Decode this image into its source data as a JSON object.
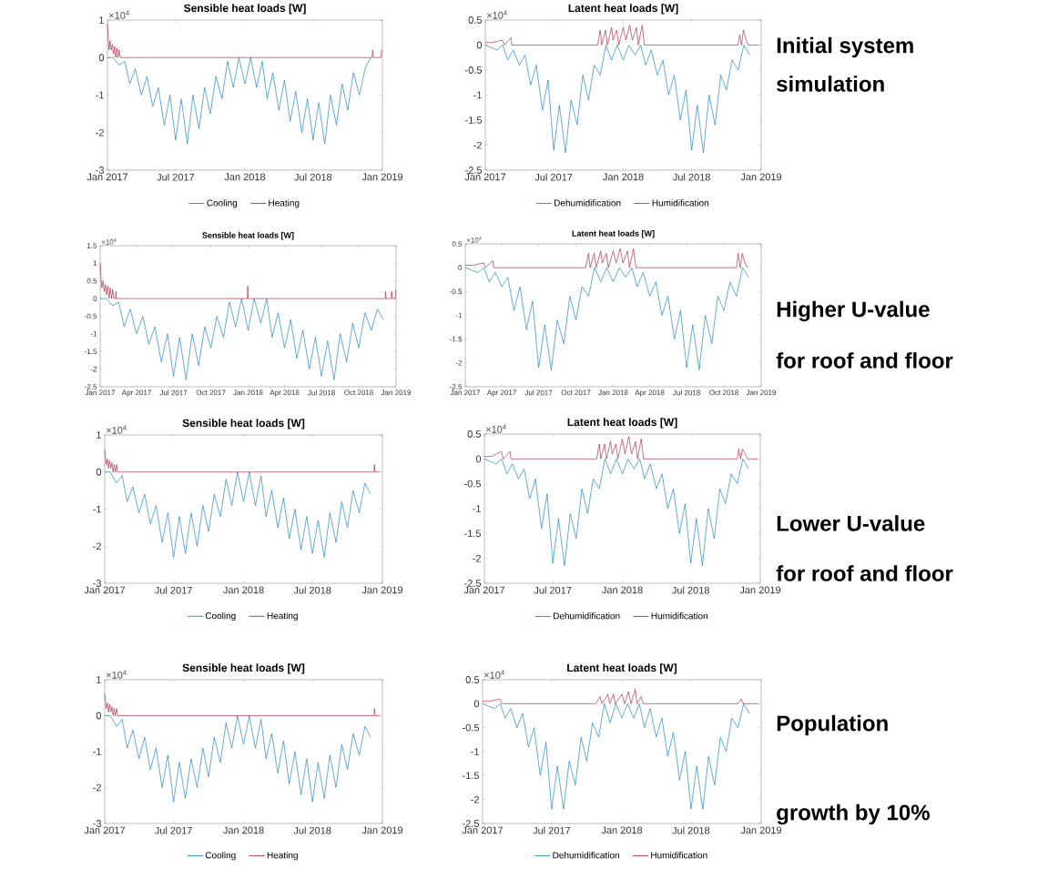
{
  "chart_data": [
    {
      "type": "line",
      "title": "Sensible heat loads [W]",
      "annotations": [
        "×10$^{4}$"
      ],
      "legend": "bottom",
      "x": [
        "2017-01-01",
        "2017-01-16",
        "2017-02-01",
        "2017-02-16",
        "2017-03-01",
        "2017-03-16",
        "2017-04-01",
        "2017-04-16",
        "2017-05-01",
        "2017-05-16",
        "2017-06-01",
        "2017-06-16",
        "2017-07-01",
        "2017-07-16",
        "2017-08-01",
        "2017-08-16",
        "2017-09-01",
        "2017-09-16",
        "2017-10-01",
        "2017-10-16",
        "2017-11-01",
        "2017-11-16",
        "2017-12-01",
        "2017-12-16",
        "2018-01-01",
        "2018-01-16",
        "2018-02-01",
        "2018-02-16",
        "2018-03-01",
        "2018-03-16",
        "2018-04-01",
        "2018-04-16",
        "2018-05-01",
        "2018-05-16",
        "2018-06-01",
        "2018-06-16",
        "2018-07-01",
        "2018-07-16",
        "2018-08-01",
        "2018-08-16",
        "2018-09-01",
        "2018-09-16",
        "2018-10-01",
        "2018-10-16",
        "2018-11-01",
        "2018-11-16",
        "2018-12-01"
      ],
      "xlim": [
        "2017-01-01",
        "2019-01-01"
      ],
      "xticks": [
        {
          "value": "2017-01-01",
          "label": "Jan 2017"
        },
        {
          "value": "2017-07-01",
          "label": "Jul 2017"
        },
        {
          "value": "2018-01-01",
          "label": "Jan 2018"
        },
        {
          "value": "2018-07-01",
          "label": "Jul 2018"
        },
        {
          "value": "2019-01-01",
          "label": "Jan 2019"
        }
      ],
      "ylim": [
        -3,
        1
      ],
      "yticks": [
        -3,
        -2,
        -1,
        0,
        1
      ],
      "series": [
        {
          "name": "Cooling",
          "color": "#0072bd",
          "values": [
            0,
            0,
            -0.2,
            -0.1,
            -0.7,
            -0.3,
            -1.0,
            -0.5,
            -1.3,
            -0.8,
            -1.8,
            -1.0,
            -2.2,
            -1.1,
            -2.3,
            -1.0,
            -1.9,
            -0.8,
            -1.5,
            -0.5,
            -1.1,
            -0.1,
            -0.8,
            0,
            -0.7,
            0,
            -0.8,
            -0.1,
            -1.1,
            -0.4,
            -1.4,
            -0.6,
            -1.7,
            -0.9,
            -2.0,
            -1.1,
            -2.2,
            -1.2,
            -2.3,
            -1.0,
            -1.8,
            -0.7,
            -1.4,
            -0.4,
            -1.0,
            -0.3,
            0
          ]
        },
        {
          "name": "Heating",
          "color": "#a2142f",
          "x": [
            "2017-01-01",
            "2017-01-03",
            "2017-01-05",
            "2017-01-08",
            "2017-01-11",
            "2017-01-14",
            "2017-01-17",
            "2017-01-20",
            "2017-01-23",
            "2017-01-26",
            "2017-01-29",
            "2017-02-01",
            "2017-02-04",
            "2018-12-05",
            "2018-12-06",
            "2018-12-08",
            "2018-12-28",
            "2018-12-30",
            "2018-12-31"
          ],
          "values": [
            0.9,
            0.5,
            0.2,
            0.45,
            0.2,
            0.35,
            0.1,
            0.3,
            0,
            0.25,
            0,
            0.2,
            0,
            0,
            0.2,
            0,
            0,
            0.2,
            0.2
          ]
        }
      ]
    },
    {
      "type": "line",
      "title": "Latent heat loads [W]",
      "annotations": [
        "×10$^{4}$",
        "Initial system",
        "simulation"
      ],
      "legend": "bottom",
      "x": [
        "2017-01-01",
        "2017-01-16",
        "2017-02-01",
        "2017-02-16",
        "2017-03-01",
        "2017-03-16",
        "2017-04-01",
        "2017-04-16",
        "2017-05-01",
        "2017-05-16",
        "2017-06-01",
        "2017-06-16",
        "2017-07-01",
        "2017-07-16",
        "2017-08-01",
        "2017-08-16",
        "2017-09-01",
        "2017-09-16",
        "2017-10-01",
        "2017-10-16",
        "2017-11-01",
        "2017-11-16",
        "2017-12-01",
        "2017-12-16",
        "2018-01-01",
        "2018-01-16",
        "2018-02-01",
        "2018-02-16",
        "2018-03-01",
        "2018-03-16",
        "2018-04-01",
        "2018-04-16",
        "2018-05-01",
        "2018-05-16",
        "2018-06-01",
        "2018-06-16",
        "2018-07-01",
        "2018-07-16",
        "2018-08-01",
        "2018-08-16",
        "2018-09-01",
        "2018-09-16",
        "2018-10-01",
        "2018-10-16",
        "2018-11-01",
        "2018-11-16",
        "2018-12-01"
      ],
      "xlim": [
        "2017-01-01",
        "2019-01-01"
      ],
      "xticks": [
        {
          "value": "2017-01-01",
          "label": "Jan 2017"
        },
        {
          "value": "2017-07-01",
          "label": "Jul 2017"
        },
        {
          "value": "2018-01-01",
          "label": "Jan 2018"
        },
        {
          "value": "2018-07-01",
          "label": "Jul 2018"
        },
        {
          "value": "2019-01-01",
          "label": "Jan 2019"
        }
      ],
      "ylim": [
        -2.5,
        0.5
      ],
      "yticks": [
        -2.5,
        -2,
        -1.5,
        -1,
        -0.5,
        0,
        0.5
      ],
      "series": [
        {
          "name": "Dehumidification",
          "color": "#0072bd",
          "values": [
            0,
            -0.05,
            -0.1,
            0,
            -0.3,
            -0.1,
            -0.4,
            -0.2,
            -0.8,
            -0.4,
            -1.3,
            -0.7,
            -2.1,
            -1.2,
            -2.15,
            -1.1,
            -1.6,
            -0.6,
            -1.1,
            -0.4,
            -0.6,
            0,
            -0.3,
            0,
            -0.3,
            0,
            -0.2,
            0,
            -0.4,
            -0.1,
            -0.6,
            -0.3,
            -1.0,
            -0.6,
            -1.5,
            -0.9,
            -2.1,
            -1.2,
            -2.15,
            -1.0,
            -1.6,
            -0.6,
            -0.9,
            -0.3,
            -0.5,
            0,
            -0.2
          ]
        },
        {
          "name": "Humidification",
          "color": "#a2142f",
          "x": [
            "2017-01-01",
            "2017-01-20",
            "2017-02-15",
            "2017-02-20",
            "2017-03-10",
            "2017-03-12",
            "2017-10-25",
            "2017-11-01",
            "2017-11-05",
            "2017-11-15",
            "2017-11-20",
            "2017-12-01",
            "2017-12-05",
            "2017-12-15",
            "2017-12-20",
            "2018-01-01",
            "2018-01-08",
            "2018-01-18",
            "2018-01-25",
            "2018-02-05",
            "2018-02-10",
            "2018-02-20",
            "2018-02-26",
            "2018-03-05",
            "2018-11-01",
            "2018-11-05",
            "2018-11-10",
            "2018-11-15",
            "2018-11-22",
            "2018-11-28",
            "2018-12-25"
          ],
          "values": [
            0.05,
            0.05,
            0.1,
            0,
            0.15,
            0,
            0,
            0.3,
            0,
            0.3,
            0,
            0.35,
            0.1,
            0.3,
            0,
            0.35,
            0.1,
            0.4,
            0.1,
            0.35,
            0,
            0.4,
            0,
            0,
            0,
            0.2,
            0,
            0.3,
            0.1,
            0,
            0
          ]
        }
      ]
    },
    {
      "type": "line",
      "title": "Sensible heat loads [W]",
      "annotations": [
        "×10$^{4}$"
      ],
      "x": [
        "2017-01-01",
        "2017-01-16",
        "2017-02-01",
        "2017-02-16",
        "2017-03-01",
        "2017-03-16",
        "2017-04-01",
        "2017-04-16",
        "2017-05-01",
        "2017-05-16",
        "2017-06-01",
        "2017-06-16",
        "2017-07-01",
        "2017-07-16",
        "2017-08-01",
        "2017-08-16",
        "2017-09-01",
        "2017-09-16",
        "2017-10-01",
        "2017-10-16",
        "2017-11-01",
        "2017-11-16",
        "2017-12-01",
        "2017-12-16",
        "2018-01-01",
        "2018-01-16",
        "2018-02-01",
        "2018-02-16",
        "2018-03-01",
        "2018-03-16",
        "2018-04-01",
        "2018-04-16",
        "2018-05-01",
        "2018-05-16",
        "2018-06-01",
        "2018-06-16",
        "2018-07-01",
        "2018-07-16",
        "2018-08-01",
        "2018-08-16",
        "2018-09-01",
        "2018-09-16",
        "2018-10-01",
        "2018-10-16",
        "2018-11-01",
        "2018-11-16",
        "2018-12-01"
      ],
      "xlim": [
        "2017-01-01",
        "2019-01-01"
      ],
      "xticks": [
        {
          "value": "2017-01-01",
          "label": "Jan 2017"
        },
        {
          "value": "2017-04-01",
          "label": "Apr 2017"
        },
        {
          "value": "2017-07-01",
          "label": "Jul 2017"
        },
        {
          "value": "2017-10-01",
          "label": "Oct 2017"
        },
        {
          "value": "2018-01-01",
          "label": "Jan 2018"
        },
        {
          "value": "2018-04-01",
          "label": "Apr 2018"
        },
        {
          "value": "2018-07-01",
          "label": "Jul 2018"
        },
        {
          "value": "2018-10-01",
          "label": "Oct 2018"
        },
        {
          "value": "2019-01-01",
          "label": "Jan 2019"
        }
      ],
      "ylim": [
        -2.5,
        1.5
      ],
      "yticks": [
        -2.5,
        -2,
        -1.5,
        -1,
        -0.5,
        0,
        0.5,
        1,
        1.5
      ],
      "series": [
        {
          "color": "#0072bd",
          "values": [
            0,
            0,
            -0.2,
            -0.1,
            -0.8,
            -0.3,
            -1.0,
            -0.5,
            -1.3,
            -0.8,
            -1.8,
            -1.0,
            -2.2,
            -1.1,
            -2.3,
            -1.0,
            -1.9,
            -0.8,
            -1.4,
            -0.5,
            -1.1,
            -0.1,
            -0.8,
            0,
            -0.9,
            0,
            -0.7,
            0,
            -1.1,
            -0.4,
            -1.4,
            -0.6,
            -1.7,
            -0.9,
            -2.0,
            -1.1,
            -2.2,
            -1.2,
            -2.3,
            -1.0,
            -1.8,
            -0.7,
            -1.4,
            -0.4,
            -0.9,
            -0.3,
            -0.6
          ]
        },
        {
          "color": "#a2142f",
          "x": [
            "2017-01-01",
            "2017-01-03",
            "2017-01-05",
            "2017-01-08",
            "2017-01-11",
            "2017-01-14",
            "2017-01-17",
            "2017-01-20",
            "2017-01-23",
            "2017-01-26",
            "2017-01-29",
            "2017-02-01",
            "2017-02-04",
            "2017-02-08",
            "2017-02-09",
            "2017-02-10",
            "2017-12-30",
            "2017-12-31",
            "2018-01-01",
            "2018-12-05",
            "2018-12-06",
            "2018-12-08",
            "2018-12-20",
            "2018-12-21",
            "2018-12-23",
            "2018-12-30",
            "2018-12-31"
          ],
          "values": [
            1.0,
            0.6,
            0.3,
            0.5,
            0.2,
            0.4,
            0.1,
            0.35,
            0,
            0.3,
            0,
            0.25,
            0,
            0,
            0.2,
            0,
            0,
            0.35,
            0,
            0,
            0.2,
            0,
            0,
            0.2,
            0,
            0,
            0.25
          ]
        }
      ]
    },
    {
      "type": "line",
      "title": "Latent heat loads [W]",
      "annotations": [
        "×10$^{4}$",
        "Higher U-value",
        "for roof and floor"
      ],
      "x": [
        "2017-01-01",
        "2017-01-16",
        "2017-02-01",
        "2017-02-16",
        "2017-03-01",
        "2017-03-16",
        "2017-04-01",
        "2017-04-16",
        "2017-05-01",
        "2017-05-16",
        "2017-06-01",
        "2017-06-16",
        "2017-07-01",
        "2017-07-16",
        "2017-08-01",
        "2017-08-16",
        "2017-09-01",
        "2017-09-16",
        "2017-10-01",
        "2017-10-16",
        "2017-11-01",
        "2017-11-16",
        "2017-12-01",
        "2017-12-16",
        "2018-01-01",
        "2018-01-16",
        "2018-02-01",
        "2018-02-16",
        "2018-03-01",
        "2018-03-16",
        "2018-04-01",
        "2018-04-16",
        "2018-05-01",
        "2018-05-16",
        "2018-06-01",
        "2018-06-16",
        "2018-07-01",
        "2018-07-16",
        "2018-08-01",
        "2018-08-16",
        "2018-09-01",
        "2018-09-16",
        "2018-10-01",
        "2018-10-16",
        "2018-11-01",
        "2018-11-16",
        "2018-12-01"
      ],
      "xlim": [
        "2017-01-01",
        "2019-01-01"
      ],
      "xticks": [
        {
          "value": "2017-01-01",
          "label": "Jan 2017"
        },
        {
          "value": "2017-04-01",
          "label": "Apr 2017"
        },
        {
          "value": "2017-07-01",
          "label": "Jul 2017"
        },
        {
          "value": "2017-10-01",
          "label": "Oct 2017"
        },
        {
          "value": "2018-01-01",
          "label": "Jan 2018"
        },
        {
          "value": "2018-04-01",
          "label": "Apr 2018"
        },
        {
          "value": "2018-07-01",
          "label": "Jul 2018"
        },
        {
          "value": "2018-10-01",
          "label": "Oct 2018"
        },
        {
          "value": "2019-01-01",
          "label": "Jan 2019"
        }
      ],
      "ylim": [
        -2.5,
        0.5
      ],
      "yticks": [
        -2.5,
        -2,
        -1.5,
        -1,
        -0.5,
        0,
        0.5
      ],
      "series": [
        {
          "color": "#0072bd",
          "values": [
            0,
            -0.05,
            -0.1,
            0,
            -0.3,
            -0.1,
            -0.4,
            -0.2,
            -0.9,
            -0.4,
            -1.3,
            -0.7,
            -2.1,
            -1.2,
            -2.15,
            -1.1,
            -1.6,
            -0.6,
            -1.1,
            -0.4,
            -0.6,
            0,
            -0.3,
            0,
            -0.3,
            0,
            -0.2,
            0,
            -0.4,
            -0.1,
            -0.6,
            -0.3,
            -1.0,
            -0.6,
            -1.5,
            -0.9,
            -2.1,
            -1.2,
            -2.15,
            -1.0,
            -1.6,
            -0.6,
            -0.9,
            -0.3,
            -0.6,
            0,
            -0.2
          ]
        },
        {
          "color": "#a2142f",
          "x": [
            "2017-01-01",
            "2017-01-20",
            "2017-02-15",
            "2017-02-20",
            "2017-03-10",
            "2017-03-12",
            "2017-10-25",
            "2017-11-01",
            "2017-11-05",
            "2017-11-15",
            "2017-11-20",
            "2017-12-01",
            "2017-12-05",
            "2017-12-15",
            "2017-12-20",
            "2018-01-01",
            "2018-01-08",
            "2018-01-18",
            "2018-01-25",
            "2018-02-05",
            "2018-02-10",
            "2018-02-20",
            "2018-02-26",
            "2018-03-05",
            "2018-11-01",
            "2018-11-05",
            "2018-11-10",
            "2018-11-15",
            "2018-11-22",
            "2018-11-28"
          ],
          "values": [
            0.05,
            0.05,
            0.1,
            0,
            0.15,
            0,
            0,
            0.3,
            0,
            0.3,
            0,
            0.35,
            0.1,
            0.3,
            0,
            0.35,
            0.1,
            0.4,
            0.1,
            0.35,
            0,
            0.4,
            0,
            0,
            0,
            0.3,
            0,
            0.3,
            0.1,
            0
          ]
        }
      ]
    },
    {
      "type": "line",
      "title": "Sensible heat loads [W]",
      "annotations": [
        "×10$^{4}$"
      ],
      "legend": "bottom",
      "x": [
        "2017-01-01",
        "2017-01-16",
        "2017-02-01",
        "2017-02-16",
        "2017-03-01",
        "2017-03-16",
        "2017-04-01",
        "2017-04-16",
        "2017-05-01",
        "2017-05-16",
        "2017-06-01",
        "2017-06-16",
        "2017-07-01",
        "2017-07-16",
        "2017-08-01",
        "2017-08-16",
        "2017-09-01",
        "2017-09-16",
        "2017-10-01",
        "2017-10-16",
        "2017-11-01",
        "2017-11-16",
        "2017-12-01",
        "2017-12-16",
        "2018-01-01",
        "2018-01-16",
        "2018-02-01",
        "2018-02-16",
        "2018-03-01",
        "2018-03-16",
        "2018-04-01",
        "2018-04-16",
        "2018-05-01",
        "2018-05-16",
        "2018-06-01",
        "2018-06-16",
        "2018-07-01",
        "2018-07-16",
        "2018-08-01",
        "2018-08-16",
        "2018-09-01",
        "2018-09-16",
        "2018-10-01",
        "2018-10-16",
        "2018-11-01",
        "2018-11-16",
        "2018-12-01"
      ],
      "xlim": [
        "2017-01-01",
        "2019-01-01"
      ],
      "xticks": [
        {
          "value": "2017-01-01",
          "label": "Jan 2017"
        },
        {
          "value": "2017-07-01",
          "label": "Jul 2017"
        },
        {
          "value": "2018-01-01",
          "label": "Jan 2018"
        },
        {
          "value": "2018-07-01",
          "label": "Jul 2018"
        },
        {
          "value": "2019-01-01",
          "label": "Jan 2019"
        }
      ],
      "ylim": [
        -3,
        1
      ],
      "yticks": [
        -3,
        -2,
        -1,
        0,
        1
      ],
      "series": [
        {
          "name": "Cooling",
          "color": "#0072bd",
          "values": [
            0,
            0,
            -0.3,
            -0.1,
            -0.8,
            -0.4,
            -1.1,
            -0.6,
            -1.4,
            -0.9,
            -1.9,
            -1.1,
            -2.3,
            -1.2,
            -2.2,
            -1.1,
            -2.0,
            -0.9,
            -1.6,
            -0.6,
            -1.2,
            -0.2,
            -0.9,
            0,
            -0.8,
            0,
            -0.9,
            -0.1,
            -1.2,
            -0.5,
            -1.5,
            -0.7,
            -1.8,
            -1.0,
            -2.1,
            -1.2,
            -2.2,
            -1.3,
            -2.3,
            -1.1,
            -1.9,
            -0.8,
            -1.5,
            -0.5,
            -1.1,
            -0.3,
            -0.6
          ]
        },
        {
          "name": "Heating",
          "color": "#a2142f",
          "x": [
            "2017-01-01",
            "2017-01-03",
            "2017-01-05",
            "2017-01-08",
            "2017-01-11",
            "2017-01-14",
            "2017-01-17",
            "2017-01-20",
            "2017-01-23",
            "2017-01-26",
            "2017-01-29",
            "2017-02-01",
            "2017-02-04",
            "2018-12-10",
            "2018-12-11",
            "2018-12-13",
            "2018-12-25"
          ],
          "values": [
            0.6,
            0.4,
            0.2,
            0.35,
            0.1,
            0.3,
            0.1,
            0.25,
            0,
            0.2,
            0,
            0.2,
            0,
            0,
            0.2,
            0,
            0
          ]
        }
      ]
    },
    {
      "type": "line",
      "title": "Latent heat loads [W]",
      "annotations": [
        "×10$^{4}$",
        "Lower U-value",
        "for roof and floor"
      ],
      "legend": "bottom",
      "x": [
        "2017-01-01",
        "2017-01-16",
        "2017-02-01",
        "2017-02-16",
        "2017-03-01",
        "2017-03-16",
        "2017-04-01",
        "2017-04-16",
        "2017-05-01",
        "2017-05-16",
        "2017-06-01",
        "2017-06-16",
        "2017-07-01",
        "2017-07-16",
        "2017-08-01",
        "2017-08-16",
        "2017-09-01",
        "2017-09-16",
        "2017-10-01",
        "2017-10-16",
        "2017-11-01",
        "2017-11-16",
        "2017-12-01",
        "2017-12-16",
        "2018-01-01",
        "2018-01-16",
        "2018-02-01",
        "2018-02-16",
        "2018-03-01",
        "2018-03-16",
        "2018-04-01",
        "2018-04-16",
        "2018-05-01",
        "2018-05-16",
        "2018-06-01",
        "2018-06-16",
        "2018-07-01",
        "2018-07-16",
        "2018-08-01",
        "2018-08-16",
        "2018-09-01",
        "2018-09-16",
        "2018-10-01",
        "2018-10-16",
        "2018-11-01",
        "2018-11-16",
        "2018-12-01"
      ],
      "xlim": [
        "2017-01-01",
        "2019-01-01"
      ],
      "xticks": [
        {
          "value": "2017-01-01",
          "label": "Jan 2017"
        },
        {
          "value": "2017-07-01",
          "label": "Jul 2017"
        },
        {
          "value": "2018-01-01",
          "label": "Jan 2018"
        },
        {
          "value": "2018-07-01",
          "label": "Jul 2018"
        },
        {
          "value": "2019-01-01",
          "label": "Jan 2019"
        }
      ],
      "ylim": [
        -2.5,
        0.5
      ],
      "yticks": [
        -2.5,
        -2,
        -1.5,
        -1,
        -0.5,
        0,
        0.5
      ],
      "series": [
        {
          "name": "Dehumidification",
          "color": "#0072bd",
          "values": [
            0,
            -0.05,
            -0.1,
            0,
            -0.3,
            -0.1,
            -0.4,
            -0.2,
            -0.8,
            -0.4,
            -1.4,
            -0.7,
            -2.1,
            -1.2,
            -2.15,
            -1.1,
            -1.6,
            -0.6,
            -1.1,
            -0.4,
            -0.6,
            0,
            -0.3,
            0,
            -0.3,
            0,
            -0.2,
            0,
            -0.4,
            -0.1,
            -0.6,
            -0.3,
            -1.0,
            -0.6,
            -1.5,
            -0.9,
            -2.1,
            -1.2,
            -2.15,
            -1.0,
            -1.6,
            -0.6,
            -0.9,
            -0.3,
            -0.5,
            0,
            -0.2
          ]
        },
        {
          "name": "Humidification",
          "color": "#a2142f",
          "x": [
            "2017-01-01",
            "2017-01-20",
            "2017-02-15",
            "2017-02-20",
            "2017-03-10",
            "2017-03-12",
            "2017-10-25",
            "2017-11-01",
            "2017-11-05",
            "2017-11-15",
            "2017-11-20",
            "2017-12-01",
            "2017-12-05",
            "2017-12-15",
            "2017-12-20",
            "2018-01-01",
            "2018-01-08",
            "2018-01-18",
            "2018-01-25",
            "2018-02-05",
            "2018-02-10",
            "2018-02-20",
            "2018-02-26",
            "2018-03-05",
            "2018-11-01",
            "2018-11-05",
            "2018-11-10",
            "2018-11-15",
            "2018-11-22",
            "2018-11-28",
            "2018-12-25"
          ],
          "values": [
            0.05,
            0.05,
            0.15,
            0,
            0.15,
            0,
            0,
            0.3,
            0,
            0.3,
            0,
            0.35,
            0.1,
            0.3,
            0,
            0.4,
            0.1,
            0.45,
            0.1,
            0.35,
            0,
            0.4,
            0,
            0,
            0,
            0.2,
            0,
            0.2,
            0.1,
            0,
            0
          ]
        }
      ]
    },
    {
      "type": "line",
      "title": "Sensible heat loads [W]",
      "annotations": [
        "×10$^{4}$"
      ],
      "legend": "bottom",
      "x": [
        "2017-01-01",
        "2017-01-16",
        "2017-02-01",
        "2017-02-16",
        "2017-03-01",
        "2017-03-16",
        "2017-04-01",
        "2017-04-16",
        "2017-05-01",
        "2017-05-16",
        "2017-06-01",
        "2017-06-16",
        "2017-07-01",
        "2017-07-16",
        "2017-08-01",
        "2017-08-16",
        "2017-09-01",
        "2017-09-16",
        "2017-10-01",
        "2017-10-16",
        "2017-11-01",
        "2017-11-16",
        "2017-12-01",
        "2017-12-16",
        "2018-01-01",
        "2018-01-16",
        "2018-02-01",
        "2018-02-16",
        "2018-03-01",
        "2018-03-16",
        "2018-04-01",
        "2018-04-16",
        "2018-05-01",
        "2018-05-16",
        "2018-06-01",
        "2018-06-16",
        "2018-07-01",
        "2018-07-16",
        "2018-08-01",
        "2018-08-16",
        "2018-09-01",
        "2018-09-16",
        "2018-10-01",
        "2018-10-16",
        "2018-11-01",
        "2018-11-16",
        "2018-12-01"
      ],
      "xlim": [
        "2017-01-01",
        "2019-01-01"
      ],
      "xticks": [
        {
          "value": "2017-01-01",
          "label": "Jan 2017"
        },
        {
          "value": "2017-07-01",
          "label": "Jul 2017"
        },
        {
          "value": "2018-01-01",
          "label": "Jan 2018"
        },
        {
          "value": "2018-07-01",
          "label": "Jul 2018"
        },
        {
          "value": "2019-01-01",
          "label": "Jan 2019"
        }
      ],
      "ylim": [
        -3,
        1
      ],
      "yticks": [
        -3,
        -2,
        -1,
        0,
        1
      ],
      "series": [
        {
          "name": "Cooling",
          "color": "#0072bd",
          "values": [
            0,
            0,
            -0.3,
            -0.1,
            -0.9,
            -0.4,
            -1.2,
            -0.6,
            -1.5,
            -0.9,
            -2.0,
            -1.1,
            -2.4,
            -1.3,
            -2.3,
            -1.2,
            -2.0,
            -0.9,
            -1.7,
            -0.6,
            -1.3,
            -0.2,
            -0.9,
            0,
            -0.8,
            0,
            -0.9,
            -0.1,
            -1.2,
            -0.5,
            -1.6,
            -0.7,
            -1.9,
            -1.0,
            -2.2,
            -1.2,
            -2.4,
            -1.3,
            -2.3,
            -1.1,
            -2.0,
            -0.8,
            -1.5,
            -0.5,
            -1.1,
            -0.3,
            -0.6
          ]
        },
        {
          "name": "Heating",
          "color": "#a2142f",
          "x": [
            "2017-01-01",
            "2017-01-03",
            "2017-01-05",
            "2017-01-08",
            "2017-01-11",
            "2017-01-14",
            "2017-01-17",
            "2017-01-20",
            "2017-01-23",
            "2017-01-26",
            "2017-01-29",
            "2017-02-01",
            "2017-02-04",
            "2018-12-10",
            "2018-12-11",
            "2018-12-13",
            "2018-12-25"
          ],
          "values": [
            0.6,
            0.4,
            0.2,
            0.35,
            0.1,
            0.3,
            0.1,
            0.25,
            0,
            0.2,
            0,
            0.2,
            0,
            0,
            0.2,
            0,
            0
          ]
        }
      ]
    },
    {
      "type": "line",
      "title": "Latent heat loads [W]",
      "annotations": [
        "×10$^{4}$",
        "Population",
        "growth by 10%"
      ],
      "legend": "bottom",
      "x": [
        "2017-01-01",
        "2017-01-16",
        "2017-02-01",
        "2017-02-16",
        "2017-03-01",
        "2017-03-16",
        "2017-04-01",
        "2017-04-16",
        "2017-05-01",
        "2017-05-16",
        "2017-06-01",
        "2017-06-16",
        "2017-07-01",
        "2017-07-16",
        "2017-08-01",
        "2017-08-16",
        "2017-09-01",
        "2017-09-16",
        "2017-10-01",
        "2017-10-16",
        "2017-11-01",
        "2017-11-16",
        "2017-12-01",
        "2017-12-16",
        "2018-01-01",
        "2018-01-16",
        "2018-02-01",
        "2018-02-16",
        "2018-03-01",
        "2018-03-16",
        "2018-04-01",
        "2018-04-16",
        "2018-05-01",
        "2018-05-16",
        "2018-06-01",
        "2018-06-16",
        "2018-07-01",
        "2018-07-16",
        "2018-08-01",
        "2018-08-16",
        "2018-09-01",
        "2018-09-16",
        "2018-10-01",
        "2018-10-16",
        "2018-11-01",
        "2018-11-16",
        "2018-12-01"
      ],
      "xlim": [
        "2017-01-01",
        "2019-01-01"
      ],
      "xticks": [
        {
          "value": "2017-01-01",
          "label": "Jan 2017"
        },
        {
          "value": "2017-07-01",
          "label": "Jul 2017"
        },
        {
          "value": "2018-01-01",
          "label": "Jan 2018"
        },
        {
          "value": "2018-07-01",
          "label": "Jul 2018"
        },
        {
          "value": "2019-01-01",
          "label": "Jan 2019"
        }
      ],
      "ylim": [
        -2.5,
        0.5
      ],
      "yticks": [
        -2.5,
        -2,
        -1.5,
        -1,
        -0.5,
        0,
        0.5
      ],
      "series": [
        {
          "name": "Dehumidification",
          "color": "#0072bd",
          "values": [
            0,
            -0.05,
            -0.1,
            0,
            -0.3,
            -0.1,
            -0.5,
            -0.2,
            -0.9,
            -0.5,
            -1.5,
            -0.8,
            -2.2,
            -1.3,
            -2.2,
            -1.2,
            -1.7,
            -0.7,
            -1.2,
            -0.4,
            -0.7,
            0,
            -0.4,
            0,
            -0.3,
            0,
            -0.3,
            0,
            -0.5,
            -0.1,
            -0.7,
            -0.3,
            -1.1,
            -0.6,
            -1.6,
            -1.0,
            -2.2,
            -1.3,
            -2.2,
            -1.1,
            -1.7,
            -0.7,
            -1.0,
            -0.3,
            -0.5,
            0,
            -0.2
          ]
        },
        {
          "name": "Humidification",
          "color": "#a2142f",
          "x": [
            "2017-01-01",
            "2017-01-20",
            "2017-02-15",
            "2017-02-20",
            "2017-10-25",
            "2017-11-05",
            "2017-11-10",
            "2017-11-25",
            "2017-11-30",
            "2017-12-10",
            "2017-12-15",
            "2018-01-01",
            "2018-01-08",
            "2018-01-18",
            "2018-01-25",
            "2018-02-05",
            "2018-02-10",
            "2018-02-20",
            "2018-02-26",
            "2018-11-01",
            "2018-11-10",
            "2018-11-15",
            "2018-12-25"
          ],
          "values": [
            0.05,
            0.05,
            0.1,
            0,
            0,
            0.15,
            0,
            0.2,
            0,
            0.2,
            0,
            0.2,
            0,
            0.25,
            0,
            0.3,
            0,
            0.15,
            0,
            0,
            0.1,
            0,
            0
          ]
        }
      ]
    }
  ]
}
